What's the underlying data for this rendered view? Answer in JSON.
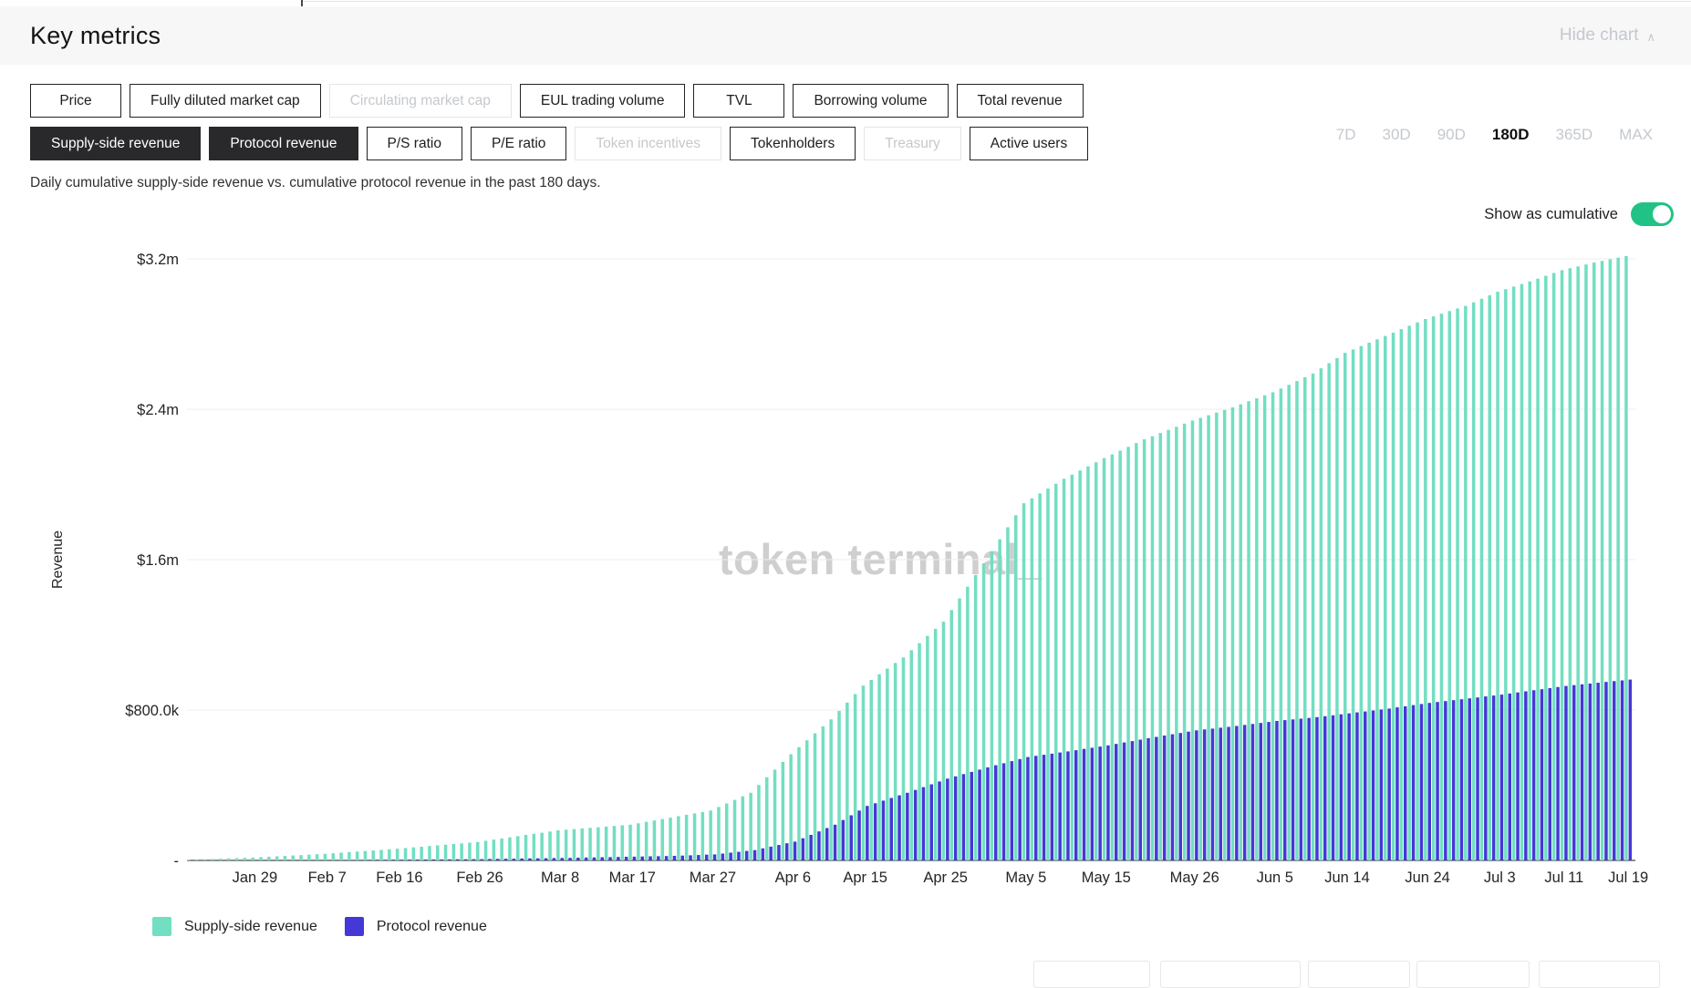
{
  "page": {
    "title": "Key metrics",
    "hide_chart_label": "Hide chart",
    "collapse_icon": "∧"
  },
  "metric_tabs": {
    "rows": [
      {
        "items": [
          {
            "label": "Price",
            "state": "default"
          },
          {
            "label": "Fully diluted market cap",
            "state": "default"
          },
          {
            "label": "Circulating market cap",
            "state": "disabled"
          },
          {
            "label": "EUL trading volume",
            "state": "default"
          },
          {
            "label": "TVL",
            "state": "default"
          },
          {
            "label": "Borrowing volume",
            "state": "default"
          },
          {
            "label": "Total revenue",
            "state": "default"
          }
        ]
      },
      {
        "items": [
          {
            "label": "Supply-side revenue",
            "state": "selected"
          },
          {
            "label": "Protocol revenue",
            "state": "selected"
          },
          {
            "label": "P/S ratio",
            "state": "default"
          },
          {
            "label": "P/E ratio",
            "state": "default"
          },
          {
            "label": "Token incentives",
            "state": "disabled"
          },
          {
            "label": "Tokenholders",
            "state": "default"
          },
          {
            "label": "Treasury",
            "state": "disabled"
          },
          {
            "label": "Active users",
            "state": "default"
          }
        ]
      }
    ]
  },
  "range_selector": {
    "options": [
      "7D",
      "30D",
      "90D",
      "180D",
      "365D",
      "MAX"
    ],
    "selected": "180D"
  },
  "description": "Daily cumulative supply-side revenue vs. cumulative protocol revenue in the past 180 days.",
  "cumulative_toggle": {
    "label": "Show as cumulative",
    "state": "on",
    "color": "#21c385"
  },
  "watermark": "token terminal_",
  "chart_data": {
    "type": "bar",
    "title": "Daily cumulative supply-side revenue vs. cumulative protocol revenue in the past 180 days.",
    "ylabel": "Revenue",
    "unit": "USD, values in thousands",
    "days_total": 180,
    "ylim_k": [
      0,
      3400
    ],
    "grid": "horizontal",
    "legend_position": "bottom-left",
    "y_ticks": [
      {
        "label": "$3.2m",
        "value_k": 3200
      },
      {
        "label": "$2.4m",
        "value_k": 2400
      },
      {
        "label": "$1.6m",
        "value_k": 1600
      },
      {
        "label": "$800.0k",
        "value_k": 800
      },
      {
        "label": "-",
        "value_k": 0
      }
    ],
    "x_ticks": [
      {
        "label": "Jan 29",
        "day": 8
      },
      {
        "label": "Feb 7",
        "day": 17
      },
      {
        "label": "Feb 16",
        "day": 26
      },
      {
        "label": "Feb 26",
        "day": 36
      },
      {
        "label": "Mar 8",
        "day": 46
      },
      {
        "label": "Mar 17",
        "day": 55
      },
      {
        "label": "Mar 27",
        "day": 65
      },
      {
        "label": "Apr 6",
        "day": 75
      },
      {
        "label": "Apr 15",
        "day": 84
      },
      {
        "label": "Apr 25",
        "day": 94
      },
      {
        "label": "May 5",
        "day": 104
      },
      {
        "label": "May 15",
        "day": 114
      },
      {
        "label": "May 26",
        "day": 125
      },
      {
        "label": "Jun 5",
        "day": 135
      },
      {
        "label": "Jun 14",
        "day": 144
      },
      {
        "label": "Jun 24",
        "day": 154
      },
      {
        "label": "Jul 3",
        "day": 163
      },
      {
        "label": "Jul 11",
        "day": 171
      },
      {
        "label": "Jul 19",
        "day": 179
      }
    ],
    "series": [
      {
        "name": "Supply-side revenue",
        "color": "#72dec2",
        "anchor_points_day_valueK": [
          [
            0,
            3
          ],
          [
            8,
            15
          ],
          [
            17,
            35
          ],
          [
            26,
            62
          ],
          [
            36,
            98
          ],
          [
            46,
            160
          ],
          [
            55,
            190
          ],
          [
            65,
            265
          ],
          [
            70,
            360
          ],
          [
            75,
            565
          ],
          [
            80,
            750
          ],
          [
            84,
            930
          ],
          [
            89,
            1080
          ],
          [
            94,
            1270
          ],
          [
            99,
            1580
          ],
          [
            104,
            1900
          ],
          [
            109,
            2030
          ],
          [
            114,
            2140
          ],
          [
            119,
            2240
          ],
          [
            125,
            2340
          ],
          [
            130,
            2410
          ],
          [
            135,
            2490
          ],
          [
            140,
            2590
          ],
          [
            144,
            2700
          ],
          [
            149,
            2790
          ],
          [
            154,
            2880
          ],
          [
            159,
            2950
          ],
          [
            163,
            3025
          ],
          [
            167,
            3080
          ],
          [
            171,
            3140
          ],
          [
            175,
            3180
          ],
          [
            179,
            3215
          ]
        ]
      },
      {
        "name": "Protocol revenue",
        "color": "#4438d6",
        "anchor_points_day_valueK": [
          [
            0,
            0
          ],
          [
            8,
            1
          ],
          [
            17,
            2
          ],
          [
            26,
            4
          ],
          [
            36,
            7
          ],
          [
            46,
            13
          ],
          [
            55,
            20
          ],
          [
            60,
            24
          ],
          [
            65,
            32
          ],
          [
            70,
            55
          ],
          [
            75,
            100
          ],
          [
            80,
            190
          ],
          [
            84,
            290
          ],
          [
            89,
            360
          ],
          [
            94,
            435
          ],
          [
            99,
            495
          ],
          [
            104,
            550
          ],
          [
            109,
            580
          ],
          [
            114,
            612
          ],
          [
            119,
            650
          ],
          [
            125,
            692
          ],
          [
            130,
            715
          ],
          [
            135,
            742
          ],
          [
            140,
            762
          ],
          [
            144,
            782
          ],
          [
            149,
            808
          ],
          [
            154,
            838
          ],
          [
            159,
            862
          ],
          [
            163,
            882
          ],
          [
            167,
            905
          ],
          [
            171,
            928
          ],
          [
            175,
            945
          ],
          [
            179,
            962
          ]
        ]
      }
    ]
  },
  "colors": {
    "header_bg": "#f7f7f8",
    "button_border": "#232325",
    "button_selected_bg": "#29292b",
    "disabled_text": "#c5c8cd",
    "gridline": "#ececee",
    "axis_line": "#4a4b4f",
    "toggle_on": "#21c385",
    "supply_side": "#72dec2",
    "protocol": "#4438d6",
    "watermark": "#c7c7c8"
  }
}
